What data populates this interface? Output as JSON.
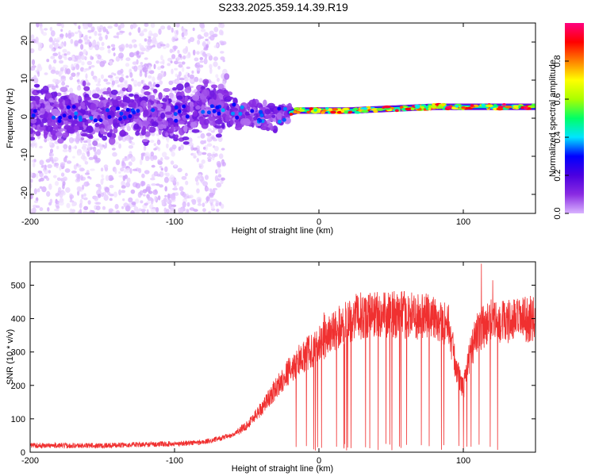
{
  "title": "S233.2025.359.14.39.R19",
  "chart_data": [
    {
      "type": "heatmap",
      "xlabel": "Height of straight line (km)",
      "ylabel": "Frequency (Hz)",
      "xlim": [
        -200,
        150
      ],
      "ylim": [
        -25,
        25
      ],
      "x_ticks": [
        -200,
        -100,
        0,
        100
      ],
      "x_tick_labels": [
        "-200",
        "-100",
        "0",
        "100"
      ],
      "y_ticks": [
        -20,
        -10,
        0,
        10,
        20
      ],
      "y_tick_labels": [
        "-20",
        "-10",
        "0",
        "10",
        "20"
      ],
      "colorbar": {
        "label": "Normalized spectral amplitude",
        "range": [
          0,
          1
        ],
        "ticks": [
          0.0,
          0.2,
          0.4,
          0.6,
          0.8
        ],
        "tick_labels": [
          "0.0",
          "0.2",
          "0.4",
          "0.6",
          "0.8"
        ],
        "colormap": [
          "#ffffff",
          "#d9b3ff",
          "#8a2be2",
          "#4b00e0",
          "#0000ff",
          "#00e5ff",
          "#00ff66",
          "#aaff00",
          "#ffff00",
          "#ff8000",
          "#ff0000",
          "#ff0080"
        ]
      },
      "ridge": {
        "description_points_x": [
          -200,
          -150,
          -100,
          -70,
          -50,
          -30,
          -15,
          0,
          20,
          50,
          80,
          110,
          150
        ],
        "frequency": [
          1.0,
          1.2,
          0.8,
          3.0,
          0.5,
          0.5,
          2.0,
          2.0,
          2.0,
          2.5,
          3.0,
          3.0,
          3.0
        ]
      }
    },
    {
      "type": "line",
      "xlabel": "Height of straight line (km)",
      "ylabel": "SNR (10 * v/v)",
      "xlim": [
        -200,
        150
      ],
      "ylim": [
        0,
        570
      ],
      "x_ticks": [
        -200,
        -100,
        0,
        100
      ],
      "x_tick_labels": [
        "-200",
        "-100",
        "0",
        "100"
      ],
      "y_ticks": [
        0,
        100,
        200,
        300,
        400,
        500
      ],
      "y_tick_labels": [
        "0",
        "100",
        "200",
        "300",
        "400",
        "500"
      ],
      "color": "#f03030",
      "envelope": {
        "x": [
          -200,
          -150,
          -100,
          -80,
          -60,
          -50,
          -40,
          -30,
          -20,
          -10,
          0,
          10,
          20,
          30,
          40,
          60,
          80,
          90,
          95,
          100,
          105,
          110,
          120,
          130,
          140,
          150
        ],
        "y": [
          20,
          20,
          25,
          30,
          50,
          80,
          130,
          190,
          250,
          290,
          320,
          360,
          395,
          410,
          415,
          410,
          405,
          380,
          250,
          190,
          300,
          360,
          400,
          390,
          395,
          400
        ]
      }
    }
  ]
}
